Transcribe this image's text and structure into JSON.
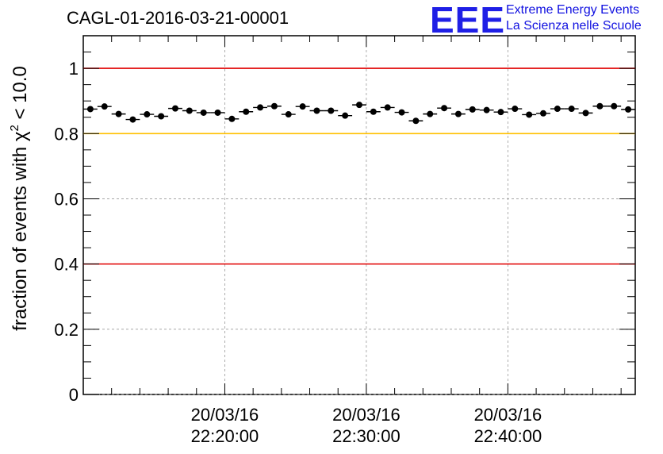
{
  "header": {
    "run_title": "CAGL-01-2016-03-21-00001"
  },
  "logo": {
    "mark": "EEE",
    "line1": "Extreme Energy Events",
    "line2": "La Scienza nelle Scuole",
    "color": "#1f1fe6"
  },
  "chart_data": {
    "type": "scatter",
    "title": "CAGL-01-2016-03-21-00001",
    "ylabel_parts": {
      "pre": "fraction of events with ",
      "sym": "χ",
      "sup": "2",
      "post": " < 10.0"
    },
    "ylim": [
      0,
      1.1
    ],
    "xlim_minutes": [
      10,
      49
    ],
    "y_ticks": [
      "0",
      "0.2",
      "0.4",
      "0.6",
      "0.8",
      "1"
    ],
    "x_ticks": [
      {
        "minute": 20,
        "date": "20/03/16",
        "time": "22:20:00"
      },
      {
        "minute": 30,
        "date": "20/03/16",
        "time": "22:30:00"
      },
      {
        "minute": 40,
        "date": "20/03/16",
        "time": "22:40:00"
      }
    ],
    "grid": true,
    "reference_lines": [
      {
        "y": 1.0,
        "color": "#e00000"
      },
      {
        "y": 0.8,
        "color": "#ffc000"
      },
      {
        "y": 0.4,
        "color": "#e00000"
      }
    ],
    "series": [
      {
        "marker": "circle",
        "color": "#000000",
        "x_minutes": [
          10.5,
          11.5,
          12.5,
          13.5,
          14.5,
          15.5,
          16.5,
          17.5,
          18.5,
          19.5,
          20.5,
          21.5,
          22.5,
          23.5,
          24.5,
          25.5,
          26.5,
          27.5,
          28.5,
          29.5,
          30.5,
          31.5,
          32.5,
          33.5,
          34.5,
          35.5,
          36.5,
          37.5,
          38.5,
          39.5,
          40.5,
          41.5,
          42.5,
          43.5,
          44.5,
          45.5,
          46.5,
          47.5,
          48.5
        ],
        "y": [
          0.875,
          0.883,
          0.86,
          0.843,
          0.859,
          0.853,
          0.877,
          0.87,
          0.864,
          0.864,
          0.845,
          0.867,
          0.88,
          0.884,
          0.859,
          0.883,
          0.87,
          0.87,
          0.855,
          0.888,
          0.867,
          0.88,
          0.865,
          0.839,
          0.86,
          0.878,
          0.86,
          0.874,
          0.872,
          0.866,
          0.876,
          0.858,
          0.862,
          0.876,
          0.876,
          0.863,
          0.884,
          0.884,
          0.874
        ]
      }
    ]
  }
}
